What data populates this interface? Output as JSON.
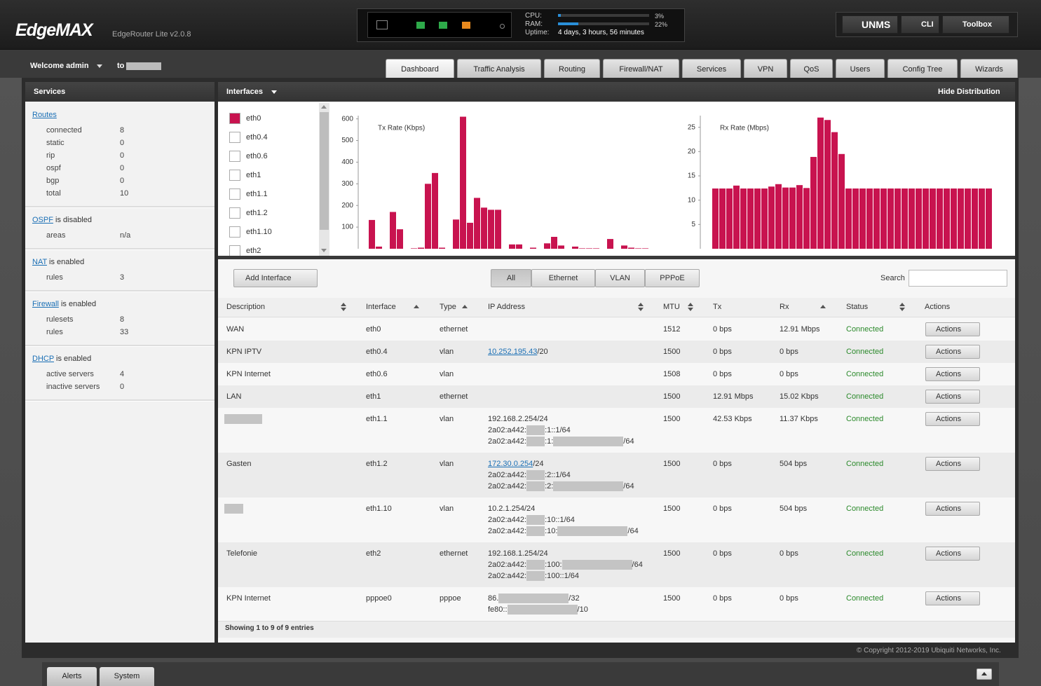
{
  "header": {
    "logo": "EdgeMAX",
    "model": "EdgeRouter Lite v2.0.8",
    "cpu_label": "CPU:",
    "cpu": {
      "value": 3,
      "label": "3%"
    },
    "ram_label": "RAM:",
    "ram": {
      "value": 22,
      "label": "22%"
    },
    "uptime_label": "Uptime:",
    "uptime": "4 days, 3 hours, 56 minutes",
    "buttons": [
      "UNMS",
      "CLI",
      "Toolbox"
    ]
  },
  "user": {
    "welcome": "Welcome admin",
    "to": "to"
  },
  "tabs": [
    {
      "label": "Dashboard",
      "active": true
    },
    {
      "label": "Traffic Analysis"
    },
    {
      "label": "Routing"
    },
    {
      "label": "Firewall/NAT"
    },
    {
      "label": "Services"
    },
    {
      "label": "VPN"
    },
    {
      "label": "QoS"
    },
    {
      "label": "Users"
    },
    {
      "label": "Config Tree"
    },
    {
      "label": "Wizards"
    }
  ],
  "services": {
    "title": "Services",
    "sections": [
      {
        "link": "Routes",
        "items": [
          {
            "label": "connected",
            "value": 8
          },
          {
            "label": "static",
            "value": 0
          },
          {
            "label": "rip",
            "value": 0
          },
          {
            "label": "ospf",
            "value": 0
          },
          {
            "label": "bgp",
            "value": 0
          },
          {
            "label": "total",
            "value": 10
          }
        ]
      },
      {
        "link": "OSPF",
        "status": " is disabled",
        "items": [
          {
            "label": "areas",
            "value": "n/a"
          }
        ]
      },
      {
        "link": "NAT",
        "status": " is enabled",
        "items": [
          {
            "label": "rules",
            "value": 3
          }
        ]
      },
      {
        "link": "Firewall",
        "status": " is enabled",
        "items": [
          {
            "label": "rulesets",
            "value": 8
          },
          {
            "label": "rules",
            "value": 33
          }
        ]
      },
      {
        "link": "DHCP",
        "status": " is enabled",
        "items": [
          {
            "label": "active servers",
            "value": 4
          },
          {
            "label": "inactive servers",
            "value": 0
          }
        ]
      }
    ]
  },
  "interfaces_panel": {
    "title": "Interfaces",
    "hide": "Hide Distribution",
    "list": [
      {
        "name": "eth0",
        "checked": true
      },
      {
        "name": "eth0.4"
      },
      {
        "name": "eth0.6"
      },
      {
        "name": "eth1"
      },
      {
        "name": "eth1.1"
      },
      {
        "name": "eth1.2"
      },
      {
        "name": "eth1.10"
      },
      {
        "name": "eth2"
      }
    ]
  },
  "tx_chart": {
    "type": "bar",
    "title": "Tx Rate (Kbps)",
    "color": "#c8134f",
    "values": [
      133,
      10,
      0,
      170,
      90,
      0,
      2,
      5,
      300,
      350,
      5,
      0,
      135,
      610,
      120,
      235,
      190,
      180,
      180,
      0,
      20,
      20,
      0,
      5,
      0,
      25,
      55,
      15,
      0,
      10,
      2,
      2,
      2,
      0,
      45,
      0,
      15,
      5,
      2,
      2
    ],
    "ylim": [
      0,
      615
    ],
    "yticks": [
      100,
      200,
      300,
      400,
      500,
      600
    ]
  },
  "rx_chart": {
    "type": "bar",
    "title": "Rx Rate (Mbps)",
    "color": "#c8134f",
    "values": [
      12.4,
      12.4,
      12.4,
      13,
      12.4,
      12.4,
      12.4,
      12.4,
      12.8,
      13.3,
      12.6,
      12.6,
      13.1,
      12.5,
      18.9,
      27,
      26.5,
      24,
      19.5,
      12.4,
      12.4,
      12.4,
      12.4,
      12.4,
      12.4,
      12.4,
      12.4,
      12.4,
      12.4,
      12.4,
      12.4,
      12.4,
      12.4,
      12.4,
      12.4,
      12.4,
      12.4,
      12.4,
      12.4,
      12.4
    ],
    "ylim": [
      0,
      27.4
    ],
    "yticks": [
      5,
      10,
      15,
      20,
      25
    ]
  },
  "toolbar": {
    "add": "Add Interface",
    "filters": [
      {
        "label": "All",
        "active": true
      },
      {
        "label": "Ethernet"
      },
      {
        "label": "VLAN"
      },
      {
        "label": "PPPoE"
      }
    ],
    "search": "Search"
  },
  "table": {
    "columns": [
      "Description",
      "Interface",
      "Type",
      "IP Address",
      "MTU",
      "Tx",
      "Rx",
      "Status",
      "Actions"
    ],
    "row_action": "Actions",
    "info": "Showing 1 to 9 of 9 entries",
    "rows": [
      {
        "description": "WAN",
        "interface": "eth0",
        "type": "ethernet",
        "ip": [],
        "mtu": 1512,
        "tx": "0 bps",
        "rx": "12.91 Mbps",
        "status": "Connected"
      },
      {
        "description": "KPN IPTV",
        "interface": "eth0.4",
        "type": "vlan",
        "ip": [
          {
            "link": "10.252.195.43",
            "suffix": "/20"
          }
        ],
        "mtu": 1500,
        "tx": "0 bps",
        "rx": "0 bps",
        "status": "Connected"
      },
      {
        "description": "KPN Internet",
        "interface": "eth0.6",
        "type": "vlan",
        "ip": [],
        "mtu": 1508,
        "tx": "0 bps",
        "rx": "0 bps",
        "status": "Connected"
      },
      {
        "description": "LAN",
        "interface": "eth1",
        "type": "ethernet",
        "ip": [],
        "mtu": 1500,
        "tx": "12.91 Mbps",
        "rx": "15.02 Kbps",
        "status": "Connected"
      },
      {
        "description": null,
        "interface": "eth1.1",
        "type": "vlan",
        "ip": [
          [
            "192.168.2.254/24"
          ],
          [
            "2a02:a442:",
            ":1::1/64"
          ],
          [
            "2a02:a442:",
            ":1:",
            "/64"
          ]
        ],
        "mtu": 1500,
        "tx": "42.53 Kbps",
        "rx": "11.37 Kbps",
        "status": "Connected"
      },
      {
        "description": "Gasten",
        "interface": "eth1.2",
        "type": "vlan",
        "ip": [
          {
            "link": "172.30.0.254",
            "suffix": "/24"
          },
          [
            "2a02:a442:",
            ":2::1/64"
          ],
          [
            "2a02:a442:",
            ":2:",
            "/64"
          ]
        ],
        "mtu": 1500,
        "tx": "0 bps",
        "rx": "504 bps",
        "status": "Connected"
      },
      {
        "description": null,
        "interface": "eth1.10",
        "type": "vlan",
        "ip": [
          [
            "10.2.1.254/24"
          ],
          [
            "2a02:a442:",
            ":10::1/64"
          ],
          [
            "2a02:a442:",
            ":10:",
            "/64"
          ]
        ],
        "mtu": 1500,
        "tx": "0 bps",
        "rx": "504 bps",
        "status": "Connected"
      },
      {
        "description": "Telefonie",
        "interface": "eth2",
        "type": "ethernet",
        "ip": [
          [
            "192.168.1.254/24"
          ],
          [
            "2a02:a442:",
            ":100:",
            "/64"
          ],
          [
            "2a02:a442:",
            ":100::1/64"
          ]
        ],
        "mtu": 1500,
        "tx": "0 bps",
        "rx": "0 bps",
        "status": "Connected"
      },
      {
        "description": "KPN Internet",
        "interface": "pppoe0",
        "type": "pppoe",
        "ip": [
          [
            "86.",
            "/32"
          ],
          [
            "fe80::",
            "/10"
          ]
        ],
        "mtu": 1500,
        "tx": "0 bps",
        "rx": "0 bps",
        "status": "Connected"
      }
    ]
  },
  "footer": {
    "copyright": "© Copyright 2012-2019 Ubiquiti Networks, Inc.",
    "tabs": [
      "Alerts",
      "System"
    ]
  }
}
